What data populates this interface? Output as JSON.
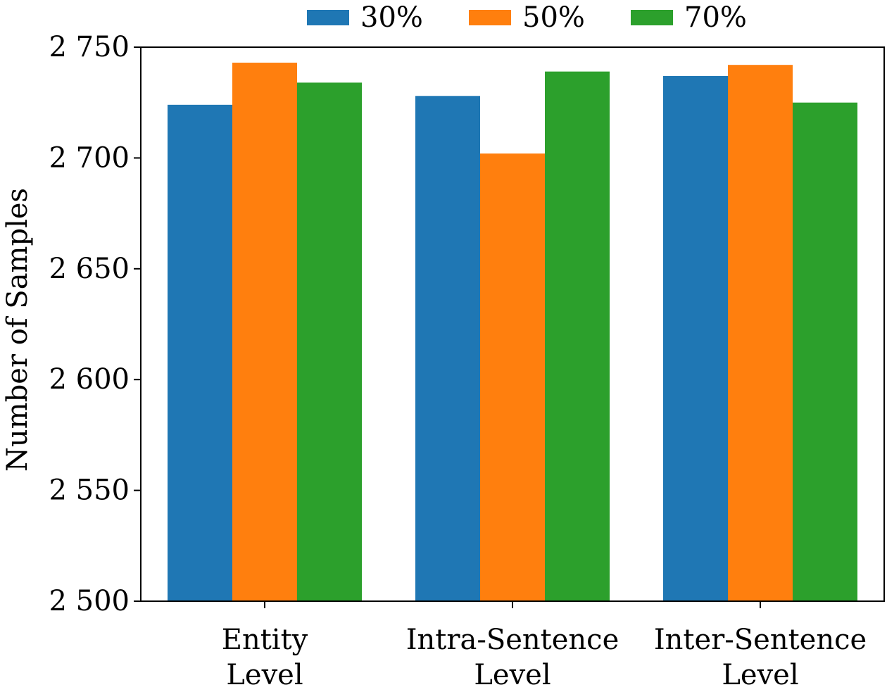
{
  "chart_data": {
    "type": "bar",
    "title": "",
    "xlabel": "",
    "ylabel": "Number of Samples",
    "categories": [
      [
        "Entity",
        "Level"
      ],
      [
        "Intra-Sentence",
        "Level"
      ],
      [
        "Inter-Sentence",
        "Level"
      ]
    ],
    "series": [
      {
        "name": "30%",
        "color": "#1f77b4",
        "values": [
          2724,
          2728,
          2737
        ]
      },
      {
        "name": "50%",
        "color": "#ff7f0e",
        "values": [
          2743,
          2702,
          2742
        ]
      },
      {
        "name": "70%",
        "color": "#2ca02c",
        "values": [
          2734,
          2739,
          2725
        ]
      }
    ],
    "ylim": [
      2500,
      2750
    ],
    "yticks": [
      2500,
      2550,
      2600,
      2650,
      2700,
      2750
    ],
    "ytick_labels": [
      "2 500",
      "2 550",
      "2 600",
      "2 650",
      "2 700",
      "2 750"
    ],
    "grid": false,
    "legend_position": "top-center, outside plot, horizontal"
  }
}
